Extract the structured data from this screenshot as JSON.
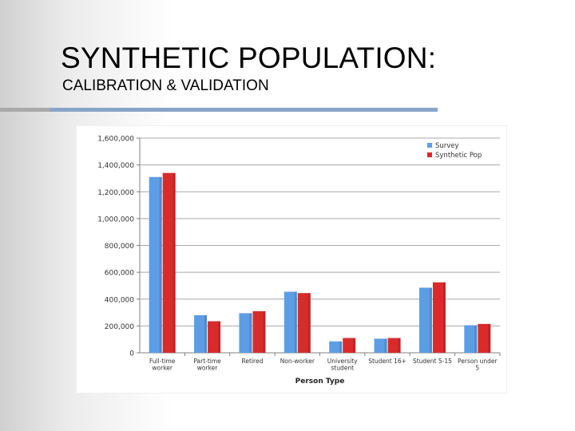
{
  "slide": {
    "title": "SYNTHETIC POPULATION:",
    "subtitle": "CALIBRATION & VALIDATION"
  },
  "colors": {
    "survey": "#5b9ee6",
    "synthetic": "#d92b2b",
    "rule_gray": "#a9a9a9",
    "rule_blue": "#8aa4c8"
  },
  "chart_data": {
    "type": "bar",
    "title": "",
    "xlabel": "Person Type",
    "ylabel": "",
    "ylim": [
      0,
      1600000
    ],
    "yticks": [
      0,
      200000,
      400000,
      600000,
      800000,
      1000000,
      1200000,
      1400000,
      1600000
    ],
    "ytick_labels": [
      "0",
      "200,000",
      "400,000",
      "600,000",
      "800,000",
      "1,000,000",
      "1,200,000",
      "1,400,000",
      "1,600,000"
    ],
    "grid": "horizontal",
    "legend_position": "top-right",
    "categories": [
      [
        "Full-time",
        "worker"
      ],
      [
        "Part-time",
        "worker"
      ],
      [
        "Retired"
      ],
      [
        "Non-worker"
      ],
      [
        "University",
        "student"
      ],
      [
        "Student 16+"
      ],
      [
        "Student 5-15"
      ],
      [
        "Person under",
        "5"
      ]
    ],
    "series": [
      {
        "name": "Survey",
        "values": [
          1310000,
          280000,
          295000,
          455000,
          85000,
          105000,
          485000,
          205000
        ]
      },
      {
        "name": "Synthetic Pop",
        "values": [
          1340000,
          235000,
          310000,
          445000,
          110000,
          110000,
          525000,
          215000
        ]
      }
    ]
  }
}
